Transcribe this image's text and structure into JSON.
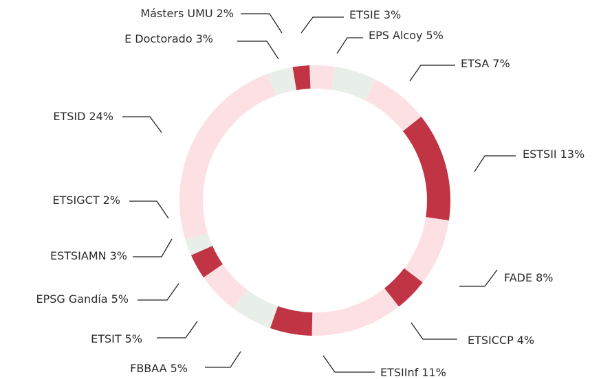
{
  "chart_data": {
    "type": "donut",
    "categories": [
      "ETSIE",
      "EPS Alcoy",
      "ETSA",
      "ESTSII",
      "FADE",
      "ETSICCP",
      "ETSIInf",
      "FBBAA",
      "ETSIT",
      "EPSG Gandía",
      "ESTSIAMN",
      "ETSIGCT",
      "ETSID",
      "E Doctorado",
      "Másters UMU"
    ],
    "values": [
      3,
      5,
      7,
      13,
      8,
      4,
      11,
      5,
      5,
      5,
      3,
      2,
      24,
      3,
      2
    ],
    "value_labels": [
      "3%",
      "5%",
      "7%",
      "13%",
      "8%",
      "4%",
      "11%",
      "5%",
      "5%",
      "5%",
      "3%",
      "2%",
      "24%",
      "3%",
      "2%"
    ],
    "colors": [
      "#fde0e4",
      "#e8efe9",
      "#fde0e4",
      "#c03444",
      "#fde0e4",
      "#c03444",
      "#fde0e4",
      "#c03444",
      "#e8efe9",
      "#fde0e4",
      "#c03444",
      "#e8efe9",
      "#fde0e4",
      "#e8efe9",
      "#c03444"
    ]
  }
}
